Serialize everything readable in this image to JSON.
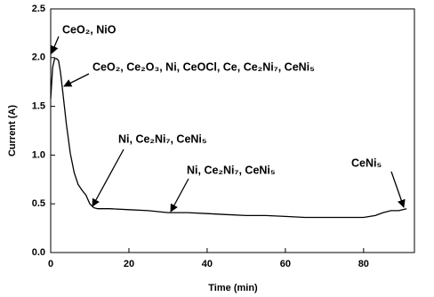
{
  "chart_data": {
    "type": "line",
    "x_label": "Time (min)",
    "y_label": "Current (A)",
    "x": [
      0,
      0.5,
      1,
      1.5,
      2,
      2.5,
      3,
      3.5,
      4,
      5,
      6,
      7,
      8,
      9,
      10,
      11,
      12,
      15,
      20,
      25,
      30,
      35,
      40,
      45,
      50,
      55,
      60,
      65,
      70,
      75,
      80,
      83,
      85,
      87,
      89,
      91
    ],
    "values": [
      1.58,
      1.9,
      1.99,
      1.99,
      1.97,
      1.85,
      1.68,
      1.5,
      1.32,
      1.02,
      0.82,
      0.7,
      0.64,
      0.59,
      0.5,
      0.46,
      0.45,
      0.45,
      0.44,
      0.43,
      0.41,
      0.41,
      0.4,
      0.39,
      0.38,
      0.38,
      0.37,
      0.36,
      0.36,
      0.36,
      0.36,
      0.38,
      0.41,
      0.43,
      0.43,
      0.45
    ],
    "color": "#000000",
    "xlim": [
      0,
      93
    ],
    "xticks": [
      0,
      20,
      40,
      60,
      80
    ],
    "ylim": [
      0,
      2.5
    ],
    "yticks": [
      {
        "value": 0,
        "label": "0.0"
      },
      0.5,
      {
        "value": 1,
        "label": "1.0"
      },
      1.5,
      {
        "value": 2,
        "label": "2.0"
      },
      2.5
    ],
    "annotations": [
      "CeO₂, NiO",
      "CeO₂, Ce₂O₃, Ni, CeOCl, Ce, Ce₂Ni₇, CeNi₅",
      "Ni, Ce₂Ni₇, CeNi₅",
      "Ni, Ce₂Ni₇, CeNi₅",
      "CeNi₅"
    ]
  }
}
